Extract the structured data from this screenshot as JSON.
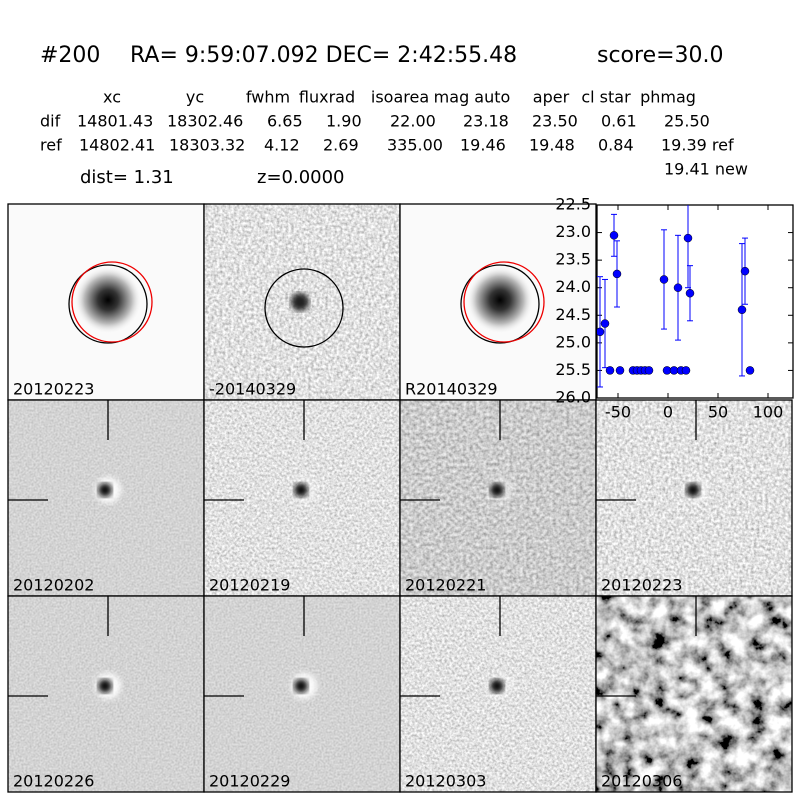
{
  "header": {
    "id": "#200",
    "coords": "RA= 9:59:07.092 DEC= 2:42:55.48",
    "score": "score=30.0"
  },
  "table": {
    "columns": [
      "xc",
      "yc",
      "fwhm",
      "fluxrad",
      "isoarea",
      "mag auto",
      "aper",
      "cl star",
      "phmag"
    ],
    "rows": [
      [
        "dif",
        "14801.43",
        "18302.46",
        "6.65",
        "1.90",
        "22.00",
        "23.18",
        "23.50",
        "0.61",
        "25.50"
      ],
      [
        "ref",
        "14802.41",
        "18303.32",
        "4.12",
        "2.69",
        "335.00",
        "19.46",
        "19.48",
        "0.84",
        "19.39 ref"
      ]
    ],
    "note": "19.41 new"
  },
  "dist": "dist=  1.31",
  "z": "z=0.0000",
  "panels": [
    {
      "label": "20120223"
    },
    {
      "label": "-20140329"
    },
    {
      "label": "R20140329"
    },
    {
      "label": "20120202"
    },
    {
      "label": "20120219"
    },
    {
      "label": "20120221"
    },
    {
      "label": "20120223",
      "label_color": "#ff0000"
    },
    {
      "label": "20120226"
    },
    {
      "label": "20120229"
    },
    {
      "label": "20120303"
    },
    {
      "label": "20120306"
    }
  ],
  "chart_data": {
    "type": "scatter",
    "color": "#0000ff",
    "x": [
      -68,
      -63,
      -58,
      -54,
      -51,
      -48,
      -35,
      -31,
      -27,
      -23,
      -19,
      -4,
      -1,
      6,
      10,
      13,
      18,
      20,
      22,
      74,
      77,
      82
    ],
    "values": [
      24.8,
      24.65,
      25.5,
      23.05,
      23.75,
      25.5,
      25.5,
      25.5,
      25.5,
      25.5,
      25.5,
      23.85,
      25.5,
      25.5,
      24.0,
      25.5,
      25.5,
      23.1,
      24.1,
      24.4,
      23.7,
      25.5
    ],
    "errors": [
      1.0,
      0.8,
      0.05,
      0.38,
      0.6,
      0.05,
      0.05,
      0.05,
      0.05,
      0.05,
      0.05,
      0.9,
      0.05,
      0.05,
      0.95,
      0.05,
      0.05,
      0.9,
      0.5,
      1.2,
      0.6,
      0.05
    ],
    "xlim": [
      -71,
      125
    ],
    "ylim": [
      22.5,
      26.0
    ],
    "y_inverted": true,
    "xticks": [
      -50,
      0,
      50,
      100
    ],
    "yticks": [
      22.5,
      {
        "value": 23,
        "label": "23.0"
      },
      23.5,
      {
        "value": 24,
        "label": "24.0"
      },
      24.5,
      {
        "value": 25,
        "label": "25.0"
      },
      25.5,
      {
        "value": 26,
        "label": "26.0"
      }
    ]
  }
}
